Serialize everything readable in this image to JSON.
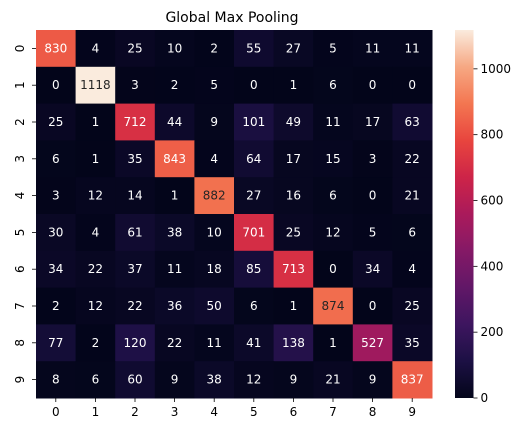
{
  "chart_data": {
    "type": "heatmap",
    "title": "Global Max Pooling",
    "xlabel": "",
    "ylabel": "",
    "x_categories": [
      "0",
      "1",
      "2",
      "3",
      "4",
      "5",
      "6",
      "7",
      "8",
      "9"
    ],
    "y_categories": [
      "0",
      "1",
      "2",
      "3",
      "4",
      "5",
      "6",
      "7",
      "8",
      "9"
    ],
    "values": [
      [
        830,
        4,
        25,
        10,
        2,
        55,
        27,
        5,
        11,
        11
      ],
      [
        0,
        1118,
        3,
        2,
        5,
        0,
        1,
        6,
        0,
        0
      ],
      [
        25,
        1,
        712,
        44,
        9,
        101,
        49,
        11,
        17,
        63
      ],
      [
        6,
        1,
        35,
        843,
        4,
        64,
        17,
        15,
        3,
        22
      ],
      [
        3,
        12,
        14,
        1,
        882,
        27,
        16,
        6,
        0,
        21
      ],
      [
        30,
        4,
        61,
        38,
        10,
        701,
        25,
        12,
        5,
        6
      ],
      [
        34,
        22,
        37,
        11,
        18,
        85,
        713,
        0,
        34,
        4
      ],
      [
        2,
        12,
        22,
        36,
        50,
        6,
        1,
        874,
        0,
        25
      ],
      [
        77,
        2,
        120,
        22,
        11,
        41,
        138,
        1,
        527,
        35
      ],
      [
        8,
        6,
        60,
        9,
        38,
        12,
        9,
        21,
        9,
        837
      ]
    ],
    "vmin": 0,
    "vmax": 1118,
    "colormap": "rocket",
    "colorbar_ticks": [
      "0",
      "200",
      "400",
      "600",
      "800",
      "1000"
    ],
    "annotations": true
  }
}
